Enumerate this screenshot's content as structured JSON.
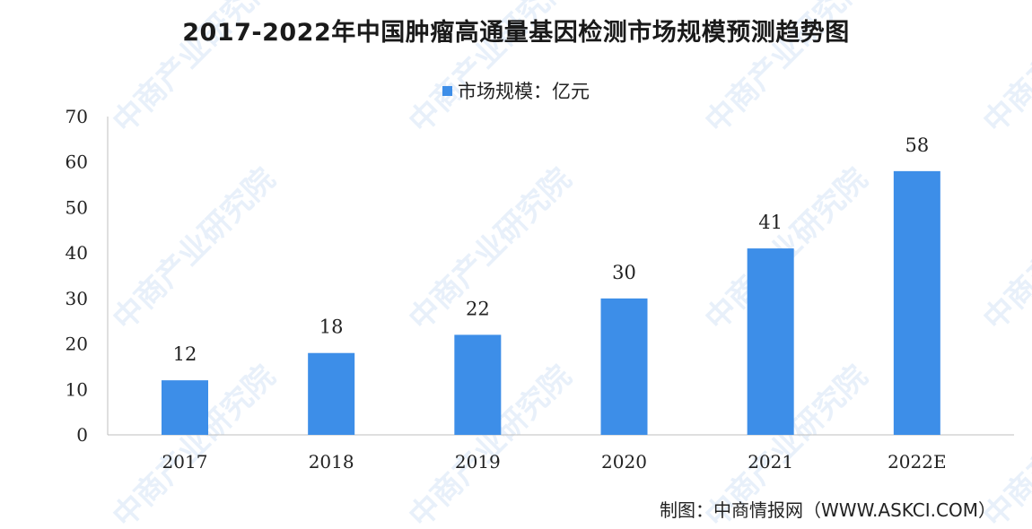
{
  "chart_data": {
    "type": "bar",
    "title": "2017-2022年中国肿瘤高通量基因检测市场规模预测趋势图",
    "categories": [
      "2017",
      "2018",
      "2019",
      "2020",
      "2021",
      "2022E"
    ],
    "series": [
      {
        "name": "市场规模：亿元",
        "values": [
          12,
          18,
          22,
          30,
          41,
          58
        ],
        "color": "#3d8ee8"
      }
    ],
    "ylim": [
      0,
      70
    ],
    "yticks": [
      0,
      10,
      20,
      30,
      40,
      50,
      60,
      70
    ],
    "grid": false,
    "legend_position": "top-center",
    "data_labels": true
  },
  "source": "制图：中商情报网（WWW.ASKCI.COM）",
  "watermark": {
    "text": "中商产业研究院"
  }
}
